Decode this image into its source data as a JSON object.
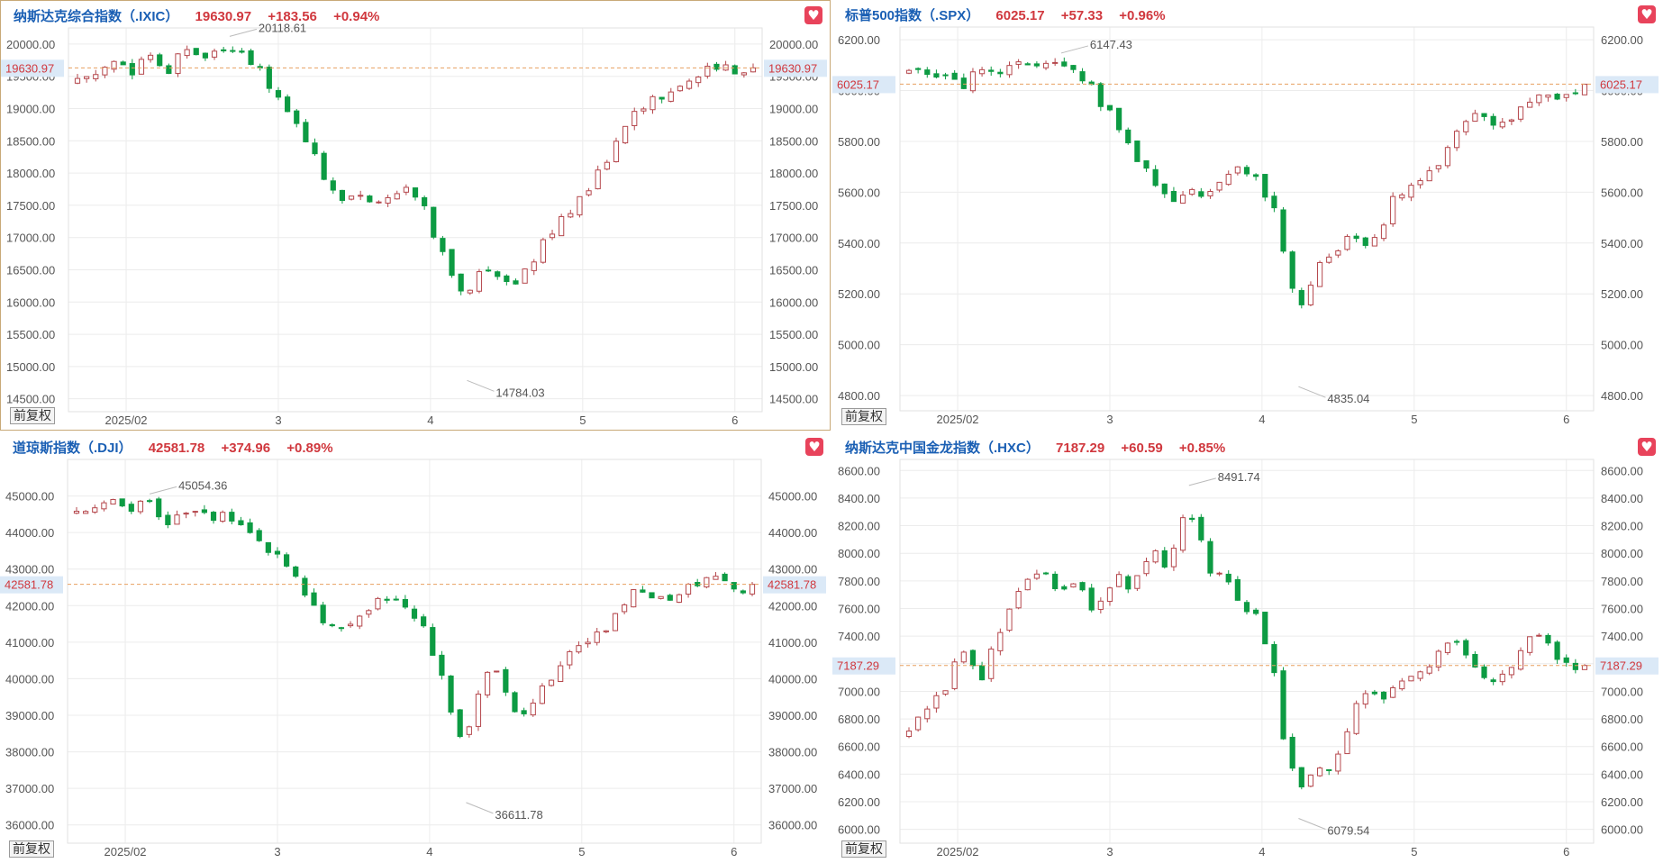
{
  "panels": [
    {
      "title": "纳斯达克综合指数（.IXIC）",
      "price": "19630.97",
      "change": "+183.56",
      "change_pct": "+0.94%",
      "adjust_button": "前复权",
      "favorite_icon": "heart-icon"
    },
    {
      "title": "标普500指数（.SPX）",
      "price": "6025.17",
      "change": "+57.33",
      "change_pct": "+0.96%",
      "adjust_button": "前复权",
      "favorite_icon": "heart-icon"
    },
    {
      "title": "道琼斯指数（.DJI）",
      "price": "42581.78",
      "change": "+374.96",
      "change_pct": "+0.89%",
      "adjust_button": "前复权",
      "favorite_icon": "heart-icon"
    },
    {
      "title": "纳斯达克中国金龙指数（.HXC）",
      "price": "7187.29",
      "change": "+60.59",
      "change_pct": "+0.85%",
      "adjust_button": "前复权",
      "favorite_icon": "heart-icon"
    }
  ],
  "colors": {
    "up": "#b5474c",
    "down": "#0d9b43",
    "current_line": "#e8a060",
    "current_tag_bg": "#dbe9f7",
    "title": "#1a5fb4",
    "change": "#d0383e"
  },
  "chart_data": [
    {
      "type": "candlestick",
      "title": "纳斯达克综合指数（.IXIC）",
      "x_ticks": [
        "2025/02",
        "3",
        "4",
        "5",
        "6"
      ],
      "ylim": [
        14300,
        20250
      ],
      "y_ticks": [
        "14500.00",
        "15000.00",
        "15500.00",
        "16000.00",
        "16500.00",
        "17000.00",
        "17500.00",
        "18000.00",
        "18500.00",
        "19000.00",
        "19500.00",
        "20000.00"
      ],
      "current": 19630.97,
      "current_label": "19630.97",
      "max_label": "20118.61",
      "min_label": "14784.03",
      "max_value": 20118.61,
      "min_value": 14784.03,
      "close_path": [
        19450,
        19700,
        19580,
        19850,
        19600,
        19900,
        19750,
        20050,
        19750,
        19500,
        19100,
        18600,
        18100,
        17600,
        17700,
        17500,
        17600,
        17900,
        17200,
        16600,
        15900,
        16700,
        16200,
        16400,
        16800,
        17200,
        17500,
        17900,
        18300,
        18900,
        19100,
        19200,
        19400,
        19550,
        19700,
        19500,
        19630.97
      ],
      "close_path_days": [
        0,
        6,
        9,
        12,
        15,
        18,
        22,
        25,
        28,
        31,
        34,
        37,
        40,
        43,
        46,
        49,
        52,
        55,
        58,
        61,
        64,
        67,
        70,
        73,
        76,
        79,
        82,
        85,
        88,
        91,
        94,
        97,
        100,
        103,
        106,
        109,
        111
      ]
    },
    {
      "type": "candlestick",
      "title": "标普500指数（.SPX）",
      "x_ticks": [
        "2025/02",
        "3",
        "4",
        "5",
        "6"
      ],
      "ylim": [
        4740,
        6250
      ],
      "y_ticks": [
        "4800.00",
        "5000.00",
        "5200.00",
        "5400.00",
        "5600.00",
        "5800.00",
        "6000.00",
        "6200.00"
      ],
      "current": 6025.17,
      "current_label": "6025.17",
      "max_label": "6147.43",
      "min_label": "4835.04",
      "max_value": 6147.43,
      "min_value": 4835.04,
      "close_path": [
        6080,
        6050,
        6020,
        6080,
        6060,
        6100,
        6090,
        6130,
        6070,
        5980,
        5880,
        5760,
        5650,
        5560,
        5610,
        5580,
        5650,
        5720,
        5620,
        5480,
        5100,
        5300,
        5350,
        5450,
        5350,
        5550,
        5620,
        5650,
        5720,
        5880,
        5920,
        5850,
        5920,
        5960,
        5990,
        5960,
        6025.17
      ],
      "close_path_days": [
        0,
        6,
        9,
        12,
        15,
        18,
        22,
        25,
        28,
        31,
        34,
        37,
        40,
        43,
        46,
        49,
        52,
        55,
        58,
        61,
        64,
        67,
        70,
        73,
        76,
        79,
        82,
        85,
        88,
        91,
        94,
        97,
        100,
        103,
        106,
        109,
        111
      ]
    },
    {
      "type": "candlestick",
      "title": "道琼斯指数（.DJI）",
      "x_ticks": [
        "2025/02",
        "3",
        "4",
        "5",
        "6"
      ],
      "ylim": [
        35500,
        46000
      ],
      "y_ticks": [
        "36000.00",
        "37000.00",
        "38000.00",
        "39000.00",
        "40000.00",
        "41000.00",
        "42000.00",
        "43000.00",
        "44000.00",
        "45000.00"
      ],
      "current": 42581.78,
      "current_label": "42581.78",
      "max_label": "45054.36",
      "min_label": "36611.78",
      "max_value": 45054.36,
      "min_value": 36611.78,
      "close_path": [
        44500,
        44800,
        44600,
        44900,
        44300,
        44600,
        44400,
        44500,
        44100,
        43500,
        43300,
        42600,
        41800,
        41200,
        41700,
        42000,
        42300,
        41800,
        41300,
        39500,
        38000,
        40300,
        40100,
        38600,
        39700,
        40200,
        40900,
        41200,
        41500,
        42300,
        42400,
        42100,
        42400,
        42700,
        42900,
        42300,
        42581.78
      ],
      "close_path_days": [
        0,
        6,
        9,
        12,
        15,
        18,
        22,
        25,
        28,
        31,
        34,
        37,
        40,
        43,
        46,
        49,
        52,
        55,
        58,
        61,
        64,
        67,
        70,
        73,
        76,
        79,
        82,
        85,
        88,
        91,
        94,
        97,
        100,
        103,
        106,
        109,
        111
      ]
    },
    {
      "type": "candlestick",
      "title": "纳斯达克中国金龙指数（.HXC）",
      "x_ticks": [
        "2025/02",
        "3",
        "4",
        "5",
        "6"
      ],
      "ylim": [
        5900,
        8680
      ],
      "y_ticks": [
        "6000.00",
        "6200.00",
        "6400.00",
        "6600.00",
        "6800.00",
        "7000.00",
        "7200.00",
        "7400.00",
        "7600.00",
        "7800.00",
        "8000.00",
        "8200.00",
        "8400.00",
        "8600.00"
      ],
      "current": 7187.29,
      "current_label": "7187.29",
      "max_label": "8491.74",
      "min_label": "6079.54",
      "max_value": 8491.74,
      "min_value": 6079.54,
      "close_path": [
        6700,
        7000,
        7300,
        7100,
        7400,
        7700,
        7900,
        7700,
        7850,
        7500,
        7900,
        7700,
        8100,
        7800,
        8450,
        7900,
        7850,
        7600,
        7550,
        6900,
        6200,
        6500,
        6400,
        6900,
        7000,
        6950,
        7150,
        7100,
        7400,
        7300,
        7150,
        7050,
        7200,
        7500,
        7300,
        7150,
        7187.29
      ],
      "close_path_days": [
        0,
        6,
        9,
        12,
        15,
        18,
        22,
        25,
        28,
        31,
        34,
        37,
        40,
        43,
        46,
        49,
        52,
        55,
        58,
        61,
        64,
        67,
        70,
        73,
        76,
        79,
        82,
        85,
        88,
        91,
        94,
        97,
        100,
        103,
        106,
        109,
        111
      ]
    }
  ]
}
